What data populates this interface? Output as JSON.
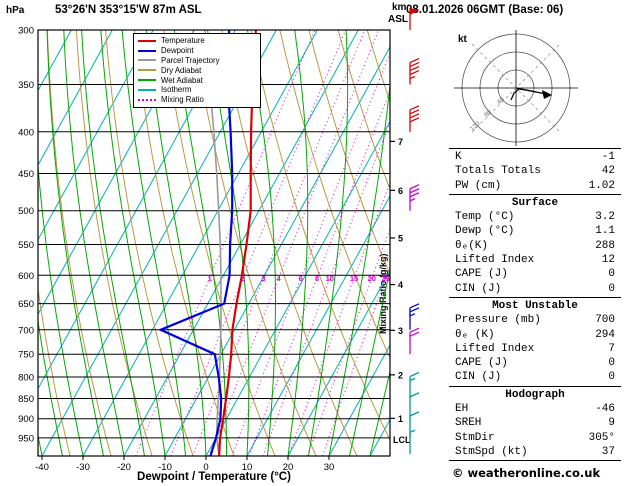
{
  "header": {
    "station": "53°26'N 353°15'W 87m ASL",
    "run": "08.01.2026 06GMT (Base: 06)"
  },
  "axes": {
    "pressure_unit": "hPa",
    "km_label_top": "km",
    "km_label_bottom": "ASL",
    "pressure_ticks": [
      300,
      350,
      400,
      450,
      500,
      550,
      600,
      650,
      700,
      750,
      800,
      850,
      900,
      950
    ],
    "temp_ticks": [
      -40,
      -30,
      -20,
      -10,
      0,
      10,
      20,
      30
    ],
    "km_ticks": [
      {
        "km": 1,
        "hpa": 899
      },
      {
        "km": 2,
        "hpa": 795
      },
      {
        "km": 3,
        "hpa": 701
      },
      {
        "km": 4,
        "hpa": 616
      },
      {
        "km": 5,
        "hpa": 540
      },
      {
        "km": 6,
        "hpa": 472
      },
      {
        "km": 7,
        "hpa": 411
      }
    ],
    "xlabel": "Dewpoint / Temperature (°C)",
    "mixing_label": "Mixing Ratio (g/kg)",
    "lcl_label": "LCL"
  },
  "legend": {
    "items": [
      {
        "label": "Temperature",
        "color": "#dd0000",
        "dash": false
      },
      {
        "label": "Dewpoint",
        "color": "#0000dd",
        "dash": false
      },
      {
        "label": "Parcel Trajectory",
        "color": "#999999",
        "dash": false
      },
      {
        "label": "Dry Adiabat",
        "color": "#bb9944",
        "dash": false
      },
      {
        "label": "Wet Adiabat",
        "color": "#00aa00",
        "dash": false
      },
      {
        "label": "Isotherm",
        "color": "#00b2b2",
        "dash": false
      },
      {
        "label": "Mixing Ratio",
        "color": "#dd00dd",
        "dash": true
      }
    ]
  },
  "chart_data": {
    "type": "line",
    "subtype": "skewt-logp-sounding",
    "pressure_hpa": [
      1000,
      950,
      900,
      850,
      800,
      750,
      700,
      650,
      600,
      550,
      500,
      450,
      400,
      350,
      300
    ],
    "temperature_c": [
      3.2,
      1.0,
      -0.8,
      -2.8,
      -5.0,
      -7.5,
      -10.5,
      -13.0,
      -15.5,
      -18.5,
      -22.0,
      -27.0,
      -32.5,
      -38.5,
      -45.0
    ],
    "dewpoint_c": [
      1.1,
      0.0,
      -1.5,
      -4.0,
      -7.5,
      -11.5,
      -28.0,
      -16.0,
      -18.5,
      -22.5,
      -26.5,
      -31.5,
      -37.5,
      -44.5,
      -51.5
    ],
    "parcel_c": [
      3.2,
      0.2,
      -2.3,
      -4.7,
      -7.3,
      -10.2,
      -13.3,
      -16.8,
      -20.6,
      -24.9,
      -29.8,
      -35.3,
      -41.6,
      -48.9,
      -57.4
    ],
    "surface_temp_c": 3.2,
    "surface_dewp_c": 1.1,
    "pressure_range_hpa": [
      300,
      1000
    ],
    "temp_axis_range_c": [
      -40,
      40
    ],
    "isotherm_step_c": 10,
    "dry_adiabat_step_k": 10,
    "wet_adiabat_start_step_c": 5,
    "mixing_ratio_lines_gkg": [
      1,
      2,
      3,
      4,
      6,
      8,
      10,
      15,
      20,
      25
    ],
    "colors": {
      "temperature": "#dd0000",
      "dewpoint": "#0000dd",
      "parcel": "#999999",
      "dry_adiabat": "#bb9944",
      "wet_adiabat": "#00aa00",
      "isotherm": "#00b2b2",
      "mixing_ratio": "#dd00dd"
    },
    "wind_barbs": [
      {
        "pressure": 300,
        "speed_kt": 50,
        "color": "#dd0000"
      },
      {
        "pressure": 350,
        "speed_kt": 45,
        "color": "#dd0000"
      },
      {
        "pressure": 400,
        "speed_kt": 40,
        "color": "#dd0000"
      },
      {
        "pressure": 500,
        "speed_kt": 35,
        "color": "#cc00cc"
      },
      {
        "pressure": 700,
        "speed_kt": 25,
        "color": "#0000cc"
      },
      {
        "pressure": 750,
        "speed_kt": 20,
        "color": "#cc00cc"
      },
      {
        "pressure": 850,
        "speed_kt": 15,
        "color": "#009999"
      },
      {
        "pressure": 900,
        "speed_kt": 10,
        "color": "#009999"
      },
      {
        "pressure": 950,
        "speed_kt": 10,
        "color": "#009999"
      },
      {
        "pressure": 995,
        "speed_kt": 5,
        "color": "#009999"
      }
    ]
  },
  "panel": {
    "hodograph_unit": "kt",
    "hodograph_ring_labels": [
      "40",
      "80",
      "120"
    ],
    "hodograph_storm_motion": {
      "dir_deg": 305,
      "speed_kt": 37
    },
    "sections": [
      {
        "title": null,
        "rows": [
          {
            "label": "K",
            "value": "-1"
          },
          {
            "label": "Totals Totals",
            "value": "42"
          },
          {
            "label": "PW (cm)",
            "value": "1.02"
          }
        ]
      },
      {
        "title": "Surface",
        "rows": [
          {
            "label": "Temp (°C)",
            "value": "3.2"
          },
          {
            "label": "Dewp (°C)",
            "value": "1.1"
          },
          {
            "label": "θₑ(K)",
            "value": "288"
          },
          {
            "label": "Lifted Index",
            "value": "12"
          },
          {
            "label": "CAPE (J)",
            "value": "0"
          },
          {
            "label": "CIN (J)",
            "value": "0"
          }
        ]
      },
      {
        "title": "Most Unstable",
        "rows": [
          {
            "label": "Pressure (mb)",
            "value": "700"
          },
          {
            "label": "θₑ (K)",
            "value": "294"
          },
          {
            "label": "Lifted Index",
            "value": "7"
          },
          {
            "label": "CAPE (J)",
            "value": "0"
          },
          {
            "label": "CIN (J)",
            "value": "0"
          }
        ]
      },
      {
        "title": "Hodograph",
        "rows": [
          {
            "label": "EH",
            "value": "-46"
          },
          {
            "label": "SREH",
            "value": "9"
          },
          {
            "label": "StmDir",
            "value": "305°"
          },
          {
            "label": "StmSpd (kt)",
            "value": "37"
          }
        ]
      }
    ]
  },
  "footer": {
    "copyright": "© weatheronline.co.uk"
  }
}
